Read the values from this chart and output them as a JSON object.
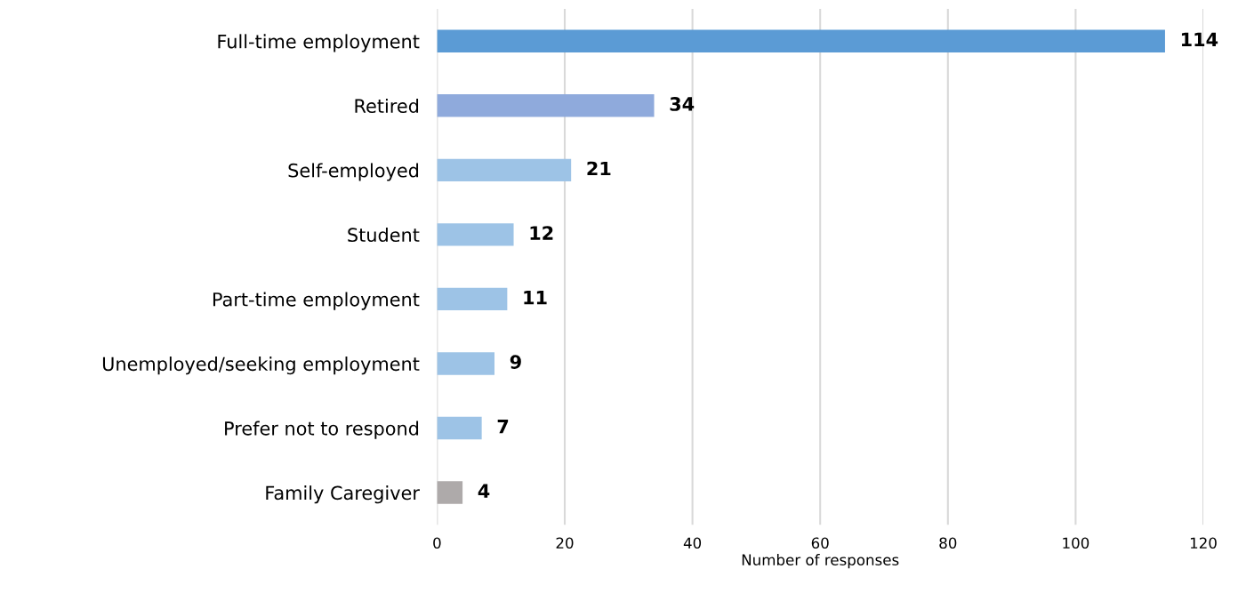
{
  "chart_data": {
    "type": "bar",
    "orientation": "horizontal",
    "xlabel": "Number of responses",
    "categories": [
      "Full-time employment",
      "Retired",
      "Self-employed",
      "Student",
      "Part-time employment",
      "Unemployed/seeking employment",
      "Prefer not to respond",
      "Family Caregiver"
    ],
    "values": [
      114,
      34,
      21,
      12,
      11,
      9,
      7,
      4
    ],
    "colors": [
      "#5b9bd5",
      "#8faadc",
      "#9dc3e6",
      "#9dc3e6",
      "#9dc3e6",
      "#9dc3e6",
      "#9dc3e6",
      "#aeaaaa"
    ],
    "xlim": [
      0,
      120
    ],
    "xticks": [
      0,
      20,
      40,
      60,
      80,
      100,
      120
    ],
    "grid": "x",
    "data_labels": true
  }
}
